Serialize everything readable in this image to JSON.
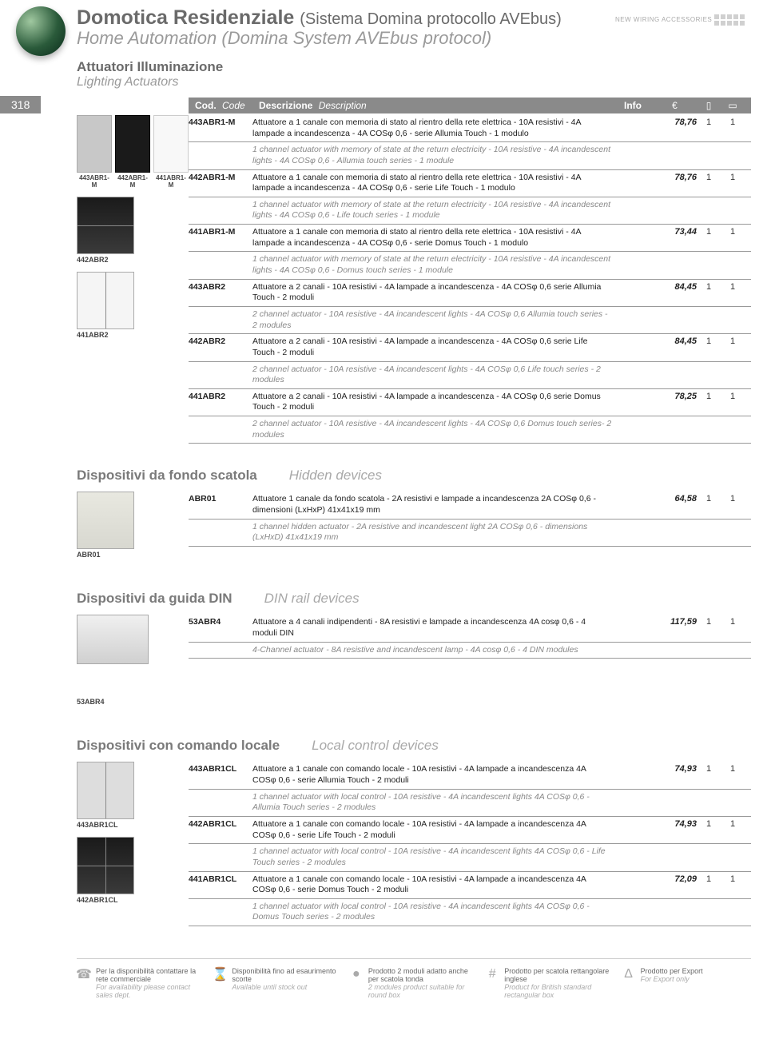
{
  "header": {
    "title_it": "Domotica Residenziale",
    "title_paren": "(Sistema Domina protocollo AVEbus)",
    "title_en": "Home Automation (Domina System AVEbus protocol)",
    "subtitle_it": "Attuatori Illuminazione",
    "subtitle_en": "Lighting Actuators",
    "badge": "NEW WIRING ACCESSORIES",
    "page_num": "318"
  },
  "table_header": {
    "code_it": "Cod.",
    "code_en": "Code",
    "desc_it": "Descrizione",
    "desc_en": "Description",
    "info": "Info",
    "price": "€",
    "q1": "▯",
    "q2": "▭"
  },
  "images": {
    "triple": [
      "443ABR1-M",
      "442ABR1-M",
      "441ABR1-M"
    ],
    "abr2_1": "442ABR2",
    "abr2_2": "441ABR2",
    "abr01": "ABR01",
    "din": "53ABR4",
    "cl1": "443ABR1CL",
    "cl2": "442ABR1CL"
  },
  "rows_main": [
    {
      "code": "443ABR1-M",
      "desc_it": "Attuatore a 1 canale con memoria di stato al rientro della rete elettrica - 10A resistivi - 4A lampade a incandescenza - 4A COSφ 0,6 - serie Allumia Touch - 1 modulo",
      "desc_en": "1 channel actuator with memory of state at the return electricity - 10A resistive - 4A incandescent lights - 4A COSφ 0,6 - Allumia touch series - 1 module",
      "price": "78,76",
      "q1": "1",
      "q2": "1"
    },
    {
      "code": "442ABR1-M",
      "desc_it": "Attuatore a 1 canale con memoria di stato al rientro della rete elettrica - 10A resistivi - 4A lampade a incandescenza - 4A COSφ 0,6 - serie Life Touch - 1 modulo",
      "desc_en": "1 channel actuator with memory of state at the return electricity - 10A resistive - 4A incandescent lights - 4A COSφ 0,6 - Life touch series - 1 module",
      "price": "78,76",
      "q1": "1",
      "q2": "1"
    },
    {
      "code": "441ABR1-M",
      "desc_it": "Attuatore a 1 canale con memoria di stato al rientro della rete elettrica - 10A resistivi - 4A lampade a incandescenza - 4A COSφ 0,6 - serie Domus Touch - 1 modulo",
      "desc_en": "1 channel actuator with memory of state at the return electricity - 10A resistive - 4A incandescent lights - 4A COSφ 0,6 - Domus touch series - 1 module",
      "price": "73,44",
      "q1": "1",
      "q2": "1"
    },
    {
      "code": "443ABR2",
      "desc_it": "Attuatore a 2 canali - 10A resistivi - 4A lampade a incandescenza - 4A COSφ 0,6 serie Allumia Touch - 2 moduli",
      "desc_en": "2 channel actuator - 10A resistive - 4A incandescent lights - 4A COSφ 0,6 Allumia touch series - 2 modules",
      "price": "84,45",
      "q1": "1",
      "q2": "1"
    },
    {
      "code": "442ABR2",
      "desc_it": "Attuatore a 2 canali - 10A resistivi - 4A lampade a incandescenza - 4A COSφ 0,6 serie Life Touch - 2 moduli",
      "desc_en": "2 channel actuator - 10A resistive - 4A incandescent lights - 4A COSφ 0,6 Life touch series - 2 modules",
      "price": "84,45",
      "q1": "1",
      "q2": "1"
    },
    {
      "code": "441ABR2",
      "desc_it": "Attuatore a 2 canali - 10A resistivi - 4A lampade a incandescenza - 4A COSφ 0,6 serie Domus Touch - 2 moduli",
      "desc_en": "2 channel actuator - 10A resistive - 4A incandescent lights - 4A COSφ 0,6 Domus touch series- 2 modules",
      "price": "78,25",
      "q1": "1",
      "q2": "1"
    }
  ],
  "section_hidden": {
    "it": "Dispositivi da fondo scatola",
    "en": "Hidden devices"
  },
  "rows_hidden": [
    {
      "code": "ABR01",
      "desc_it": "Attuatore 1 canale da fondo scatola - 2A resistivi e lampade a incandescenza 2A COSφ 0,6 - dimensioni (LxHxP) 41x41x19 mm",
      "desc_en": "1 channel hidden actuator - 2A resistive and incandescent light 2A COSφ 0,6 - dimensions (LxHxD) 41x41x19 mm",
      "price": "64,58",
      "q1": "1",
      "q2": "1"
    }
  ],
  "section_din": {
    "it": "Dispositivi da guida DIN",
    "en": "DIN rail devices"
  },
  "rows_din": [
    {
      "code": "53ABR4",
      "desc_it": "Attuatore a 4 canali indipendenti - 8A resistivi e lampade a incandescenza 4A cosφ 0,6 - 4 moduli DIN",
      "desc_en": "4-Channel actuator - 8A resistive and incandescent lamp - 4A cosφ 0,6 - 4 DIN modules",
      "price": "117,59",
      "q1": "1",
      "q2": "1"
    }
  ],
  "section_local": {
    "it": "Dispositivi con comando locale",
    "en": "Local control devices"
  },
  "rows_local": [
    {
      "code": "443ABR1CL",
      "desc_it": "Attuatore a 1 canale con comando locale - 10A resistivi - 4A lampade a incandescenza 4A COSφ 0,6  - serie Allumia Touch - 2 moduli",
      "desc_en": "1 channel actuator with local control - 10A resistive - 4A incandescent lights 4A COSφ 0,6  - Allumia Touch series - 2 modules",
      "price": "74,93",
      "q1": "1",
      "q2": "1"
    },
    {
      "code": "442ABR1CL",
      "desc_it": "Attuatore a 1 canale con comando locale - 10A resistivi - 4A lampade a incandescenza 4A COSφ 0,6 - serie Life Touch - 2 moduli",
      "desc_en": "1 channel actuator with local control - 10A resistive - 4A incandescent lights 4A COSφ 0,6  - Life Touch series - 2 modules",
      "price": "74,93",
      "q1": "1",
      "q2": "1"
    },
    {
      "code": "441ABR1CL",
      "desc_it": "Attuatore a 1 canale con comando locale - 10A resistivi - 4A lampade a incandescenza 4A COSφ 0,6 - serie Domus Touch - 2 moduli",
      "desc_en": "1 channel actuator with local control - 10A resistive  - 4A incandescent lights 4A COSφ 0,6  - Domus Touch series - 2 modules",
      "price": "72,09",
      "q1": "1",
      "q2": "1"
    }
  ],
  "footer": [
    {
      "icon": "☎",
      "it": "Per la disponibilità contattare la rete commerciale",
      "en": "For availability please contact sales dept."
    },
    {
      "icon": "⌛",
      "it": "Disponibilità fino ad esaurimento scorte",
      "en": "Available until stock out"
    },
    {
      "icon": "●",
      "it": "Prodotto 2 moduli adatto anche per scatola tonda",
      "en": "2 modules product suitable for round box"
    },
    {
      "icon": "#",
      "it": "Prodotto per scatola rettangolare inglese",
      "en": "Product for British standard rectangular box"
    },
    {
      "icon": "Δ",
      "it": "Prodotto per Export",
      "en": "For Export only"
    }
  ]
}
